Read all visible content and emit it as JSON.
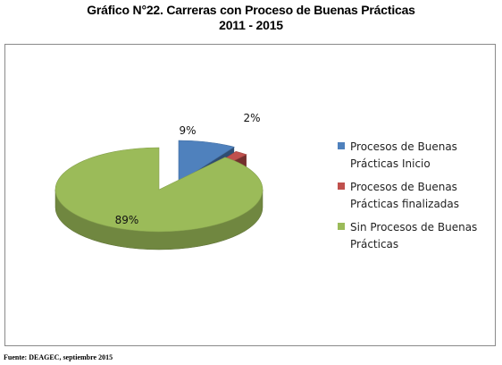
{
  "title_line1": "Gráfico N°22. Carreras con Proceso de Buenas Prácticas",
  "title_line2": "2011 - 2015",
  "source": "Fuente: DEAGEC, septiembre 2015",
  "chart_data": {
    "type": "pie",
    "title": "Gráfico N°22. Carreras con Proceso de Buenas Prácticas 2011 - 2015",
    "categories": [
      "Procesos de Buenas Prácticas Inicio",
      "Procesos de Buenas Prácticas finalizadas",
      "Sin Procesos de Buenas Prácticas"
    ],
    "values": [
      9,
      2,
      89
    ],
    "labels": [
      "9%",
      "2%",
      "89%"
    ],
    "colors": [
      "#4f81bd",
      "#c0504d",
      "#9bbb59"
    ],
    "legend_position": "right",
    "style": "3d-exploded"
  },
  "legend": [
    {
      "line1": "Procesos de Buenas",
      "line2": "Prácticas Inicio",
      "color": "#4f81bd"
    },
    {
      "line1": "Procesos de Buenas",
      "line2": "Prácticas finalizadas",
      "color": "#c0504d"
    },
    {
      "line1": "Sin Procesos de Buenas",
      "line2": "Prácticas",
      "color": "#9bbb59"
    }
  ]
}
